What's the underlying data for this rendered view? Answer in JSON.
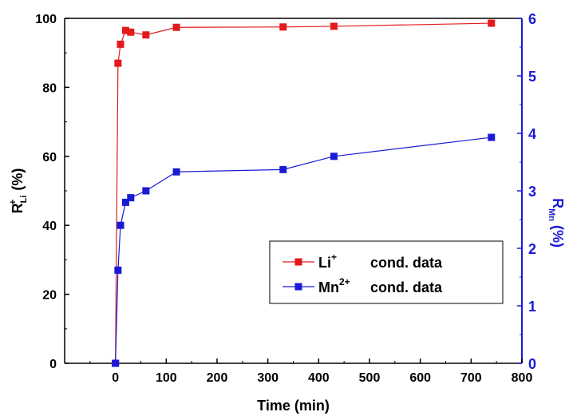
{
  "chart_data": {
    "type": "line",
    "xlabel": "Time (min)",
    "ylabel_left": {
      "main": "R",
      "sub": "Li",
      "sup": "+",
      "tail": " (%)"
    },
    "ylabel_right": {
      "main": "R",
      "sub": "Mn",
      "tail": " (%)"
    },
    "xlim": [
      -100,
      800
    ],
    "ylim_left": [
      0,
      100
    ],
    "ylim_right": [
      0,
      6
    ],
    "x_ticks": [
      0,
      100,
      200,
      300,
      400,
      500,
      600,
      700,
      800
    ],
    "y_left_ticks": [
      0,
      20,
      40,
      60,
      80,
      100
    ],
    "y_right_ticks": [
      0,
      1,
      2,
      3,
      4,
      5,
      6
    ],
    "grid": false,
    "legend_position": "center-right",
    "series": [
      {
        "name": "Li",
        "name_sup": "+",
        "name_suffix": "cond. data",
        "axis": "left",
        "color": "#e31a1c",
        "x": [
          0,
          5,
          10,
          20,
          30,
          60,
          120,
          330,
          430,
          740
        ],
        "y": [
          0,
          87,
          92.5,
          96.5,
          96,
          95.2,
          97.4,
          97.5,
          97.7,
          98.6
        ]
      },
      {
        "name": "Mn",
        "name_sup": "2+",
        "name_suffix": "cond. data",
        "axis": "right",
        "color": "#1a1ad6",
        "x": [
          0,
          5,
          10,
          20,
          30,
          60,
          120,
          330,
          430,
          740
        ],
        "y": [
          0,
          1.62,
          2.4,
          2.8,
          2.88,
          3.0,
          3.33,
          3.37,
          3.6,
          3.93
        ]
      }
    ]
  }
}
